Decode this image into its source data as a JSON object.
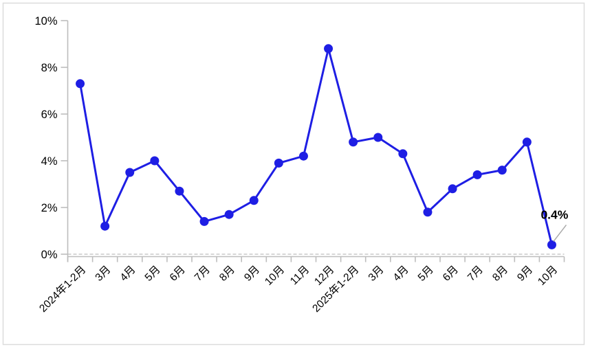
{
  "chart_data": {
    "type": "line",
    "title": "",
    "categories": [
      "2024年1-2月",
      "3月",
      "4月",
      "5月",
      "6月",
      "7月",
      "8月",
      "9月",
      "10月",
      "11月",
      "12月",
      "2025年1-2月",
      "3月",
      "4月",
      "5月",
      "6月",
      "7月",
      "8月",
      "9月",
      "10月"
    ],
    "values": [
      7.3,
      1.2,
      3.5,
      4.0,
      2.7,
      1.4,
      1.7,
      2.3,
      3.9,
      4.2,
      8.8,
      4.8,
      5.0,
      4.3,
      1.8,
      2.8,
      3.4,
      3.6,
      4.8,
      0.4
    ],
    "ylim": [
      0,
      10
    ],
    "yticks": [
      0,
      2,
      4,
      6,
      8,
      10
    ],
    "ytick_suffix": "%",
    "xlabel": "",
    "ylabel": "",
    "legend": "none",
    "grid": "dashed-zero-line-only",
    "annotation": {
      "index": 19,
      "label": "0.4%"
    },
    "colors": {
      "line": "#1E1EE4",
      "marker": "#1E1EE4",
      "axis": "#BDBDBD",
      "zero_dash": "#C9C9C9",
      "leader": "#A9A9A9",
      "text": "#000000",
      "frame_border": "#DCDCDC",
      "background": "#FFFFFF"
    }
  }
}
